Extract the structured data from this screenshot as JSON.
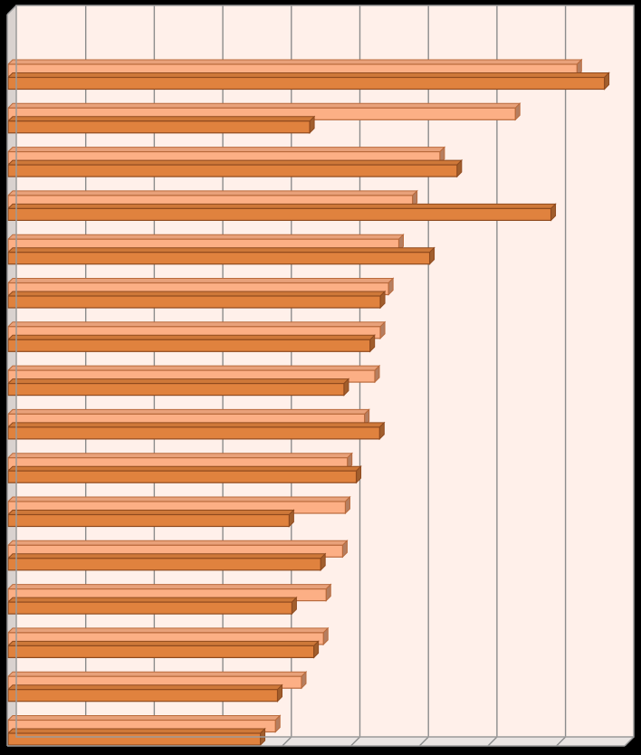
{
  "chart_data": {
    "type": "bar",
    "orientation": "horizontal",
    "style": "3d",
    "categories": [
      "",
      "",
      "",
      "",
      "",
      "",
      "",
      "",
      "",
      "",
      "",
      "",
      "",
      "",
      "",
      ""
    ],
    "series": [
      {
        "values": [
          83,
          74,
          63,
          59,
          57,
          55.5,
          54.3,
          53.5,
          52,
          49.5,
          49.2,
          48.8,
          46.4,
          46,
          42.8,
          39
        ]
      },
      {
        "values": [
          87,
          44,
          65.5,
          79.2,
          61.5,
          54.3,
          52.8,
          49,
          54.2,
          50.8,
          41,
          45.6,
          41.4,
          44.6,
          39.3,
          36.8
        ]
      }
    ],
    "xlim": [
      0,
      90
    ],
    "grid": true,
    "legend": false,
    "colors": {
      "series1": "#fcaf85",
      "series2": "#e0823e",
      "series1_edge": "#b96a3c",
      "series2_edge": "#8f4a1e",
      "plot_background": "#fff0ea",
      "gridline": "#8c8c8c",
      "frame": "#9a9a9a",
      "outer_background": "#000000"
    }
  }
}
